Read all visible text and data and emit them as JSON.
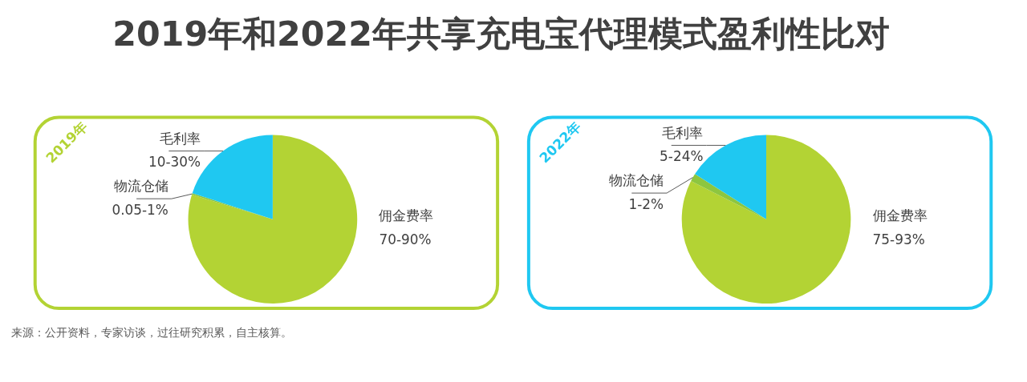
{
  "chart_data": [
    {
      "type": "pie",
      "title": "2019年和2022年共享充电宝代理模式盈利性比对",
      "subtitle": "2019年",
      "categories": [
        "佣金费率",
        "物流仓储",
        "毛利率"
      ],
      "values": [
        79.7,
        0.3,
        20
      ],
      "colors": [
        "#b3d334",
        "#8dc63f",
        "#1fc8f1"
      ],
      "annotations": [
        {
          "text": "70-90%",
          "x": "佣金费率"
        },
        {
          "text": "0.05-1%",
          "x": "物流仓储"
        },
        {
          "text": "10-30%",
          "x": "毛利率"
        },
        "来源：公开资料，专家访谈，过往研究积累，自主核算。"
      ]
    },
    {
      "type": "pie",
      "subtitle": "2022年",
      "categories": [
        "佣金费率",
        "物流仓储",
        "毛利率"
      ],
      "values": [
        82.5,
        1.5,
        16
      ],
      "colors": [
        "#b3d334",
        "#8dc63f",
        "#1fc8f1"
      ],
      "annotations": [
        {
          "text": "75-93%",
          "x": "佣金费率"
        },
        {
          "text": "1-2%",
          "x": "物流仓储"
        },
        {
          "text": "5-24%",
          "x": "毛利率"
        }
      ]
    }
  ]
}
